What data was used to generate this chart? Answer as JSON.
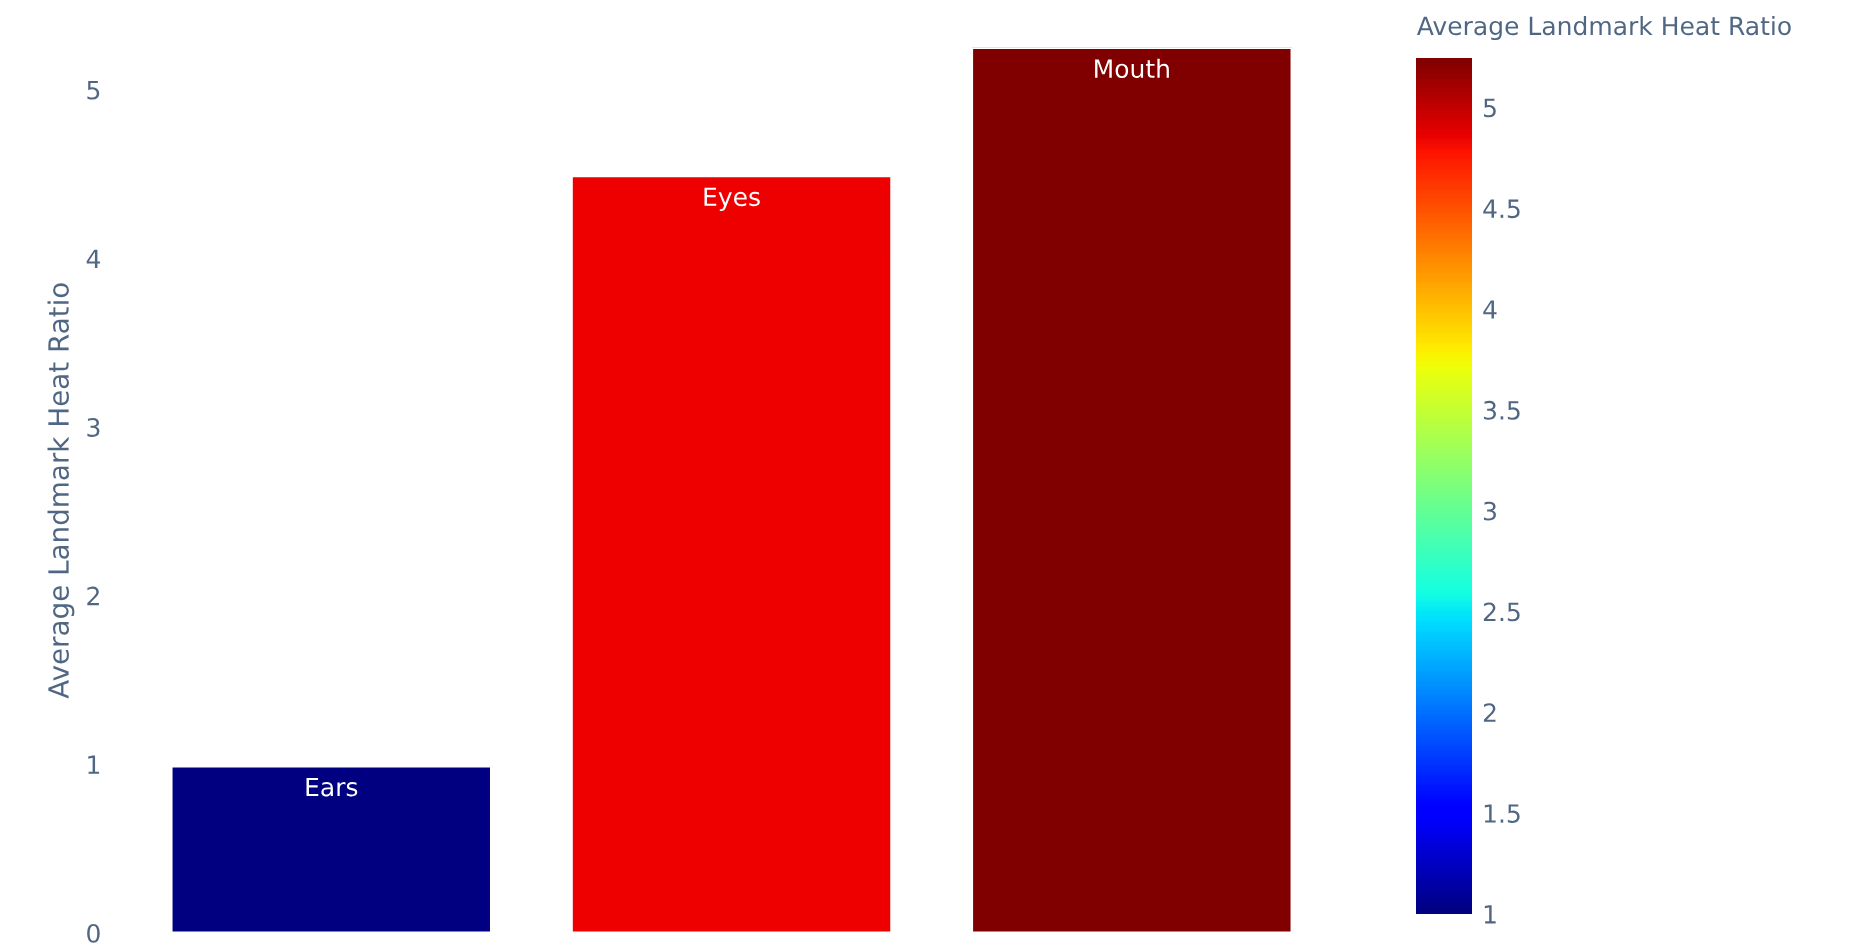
{
  "chart_data": {
    "type": "bar",
    "ylabel": "Average Landmark Heat Ratio",
    "clabel": "Average Landmark Heat Ratio",
    "categories": [
      "Ears",
      "Eyes",
      "Mouth"
    ],
    "values": [
      0.99,
      4.49,
      5.25
    ],
    "colors": [
      "#000080",
      "#ee0000",
      "#800000"
    ],
    "ylim": [
      0,
      5.25
    ],
    "yticks": [
      0,
      1,
      2,
      3,
      4,
      5
    ],
    "clim": [
      1,
      5.25
    ],
    "cticks": [
      1,
      1.5,
      2,
      2.5,
      3,
      3.5,
      4,
      4.5,
      5
    ],
    "tick_labels": "y",
    "grid": false,
    "legend": false
  }
}
